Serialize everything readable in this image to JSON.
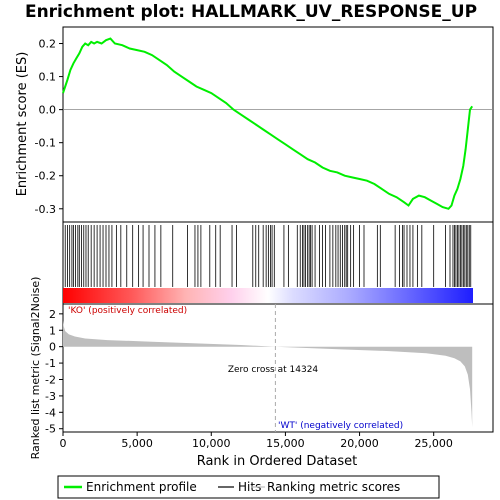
{
  "chart_data": {
    "type": "line",
    "title": "Enrichment plot: HALLMARK_UV_RESPONSE_UP",
    "xlabel": "Rank in Ordered Dataset",
    "x_ticks": [
      "0",
      "5,000",
      "10,000",
      "15,000",
      "20,000",
      "25,000"
    ],
    "xlim": [
      0,
      29000
    ],
    "es_panel": {
      "ylabel": "Enrichment score (ES)",
      "ylim": [
        -0.34,
        0.25
      ],
      "y_ticks": [
        "-0.3",
        "-0.2",
        "-0.1",
        "0.0",
        "0.1",
        "0.2"
      ],
      "x": [
        0,
        150,
        300,
        500,
        700,
        900,
        1100,
        1300,
        1500,
        1700,
        1900,
        2100,
        2300,
        2600,
        2900,
        3200,
        3500,
        4000,
        4500,
        5000,
        5500,
        6000,
        6500,
        7000,
        7500,
        8000,
        8500,
        9000,
        9500,
        10000,
        10500,
        11000,
        11500,
        12000,
        12500,
        13000,
        13500,
        14000,
        14500,
        15000,
        15500,
        16000,
        16500,
        17000,
        17500,
        18000,
        18500,
        19000,
        19500,
        20000,
        20500,
        21000,
        21500,
        22000,
        22500,
        23000,
        23300,
        23600,
        24000,
        24400,
        24800,
        25200,
        25600,
        26000,
        26200,
        26400,
        26600,
        26800,
        27000,
        27150,
        27300,
        27450,
        27600
      ],
      "y": [
        0.05,
        0.07,
        0.09,
        0.12,
        0.14,
        0.155,
        0.17,
        0.19,
        0.2,
        0.195,
        0.205,
        0.2,
        0.205,
        0.2,
        0.21,
        0.215,
        0.2,
        0.195,
        0.185,
        0.18,
        0.175,
        0.165,
        0.15,
        0.135,
        0.115,
        0.1,
        0.085,
        0.07,
        0.06,
        0.05,
        0.035,
        0.02,
        0.0,
        -0.015,
        -0.03,
        -0.045,
        -0.06,
        -0.075,
        -0.09,
        -0.105,
        -0.12,
        -0.135,
        -0.15,
        -0.16,
        -0.175,
        -0.185,
        -0.19,
        -0.2,
        -0.205,
        -0.21,
        -0.215,
        -0.225,
        -0.24,
        -0.255,
        -0.265,
        -0.28,
        -0.29,
        -0.27,
        -0.26,
        -0.265,
        -0.275,
        -0.285,
        -0.295,
        -0.3,
        -0.29,
        -0.26,
        -0.24,
        -0.21,
        -0.17,
        -0.12,
        -0.06,
        0.0,
        0.01
      ],
      "series_name": "Enrichment profile",
      "series_color": "#00ee00"
    },
    "hits": [
      150,
      300,
      450,
      600,
      700,
      850,
      1000,
      1100,
      1250,
      1400,
      1550,
      1700,
      1900,
      2100,
      2300,
      2500,
      2700,
      2900,
      3100,
      3300,
      3600,
      3900,
      4300,
      4700,
      5100,
      5400,
      5800,
      6200,
      6600,
      7400,
      8400,
      8900,
      9100,
      9300,
      9900,
      10300,
      10600,
      11400,
      11700,
      12800,
      13000,
      13200,
      13500,
      13700,
      13850,
      14000,
      14100,
      14250,
      14900,
      15200,
      15800,
      16000,
      16150,
      16250,
      16350,
      16500,
      16600,
      16700,
      16800,
      17000,
      17300,
      17500,
      17700,
      18000,
      18200,
      18400,
      18550,
      18700,
      18850,
      19000,
      19100,
      19200,
      19400,
      19600,
      20000,
      20300,
      21200,
      21400,
      22400,
      22700,
      22900,
      23000,
      23200,
      23400,
      23600,
      23900,
      24200,
      25000,
      25800,
      26100,
      26300,
      26400,
      26500,
      26600,
      26700,
      26800,
      26900,
      27000,
      27100,
      27200,
      27300,
      27400,
      27500
    ],
    "hit_color": "#000000",
    "metric_panel": {
      "ylabel": "Ranked list metric (Signal2Noise)",
      "ylim": [
        -5.2,
        2.6
      ],
      "y_ticks": [
        "-5",
        "-4",
        "-3",
        "-2",
        "-1",
        "0",
        "1",
        "2"
      ],
      "x": [
        0,
        50,
        150,
        400,
        800,
        1500,
        3000,
        6000,
        9000,
        12000,
        14324,
        16000,
        19000,
        22000,
        24500,
        25800,
        26400,
        26800,
        27100,
        27300,
        27450,
        27550,
        27600
      ],
      "y": [
        1.6,
        1.25,
        0.95,
        0.75,
        0.62,
        0.5,
        0.4,
        0.3,
        0.2,
        0.1,
        0.0,
        -0.07,
        -0.17,
        -0.27,
        -0.4,
        -0.55,
        -0.7,
        -0.9,
        -1.2,
        -1.7,
        -2.6,
        -4.0,
        -4.9
      ],
      "series_name": "Ranking metric scores",
      "fill_color": "#bebebe"
    },
    "zero_cross_label": "Zero cross at 14324",
    "zero_cross": 14324,
    "pos_label": "'KO' (positively correlated)",
    "neg_label": "'WT' (negatively correlated)",
    "pos_label_color": "#cc0000",
    "neg_label_color": "#0000cc",
    "legend": {
      "placement": "bottom",
      "items": [
        {
          "label": "Enrichment profile",
          "color": "#00ee00"
        },
        {
          "label": "Hits",
          "color": "#000000"
        },
        {
          "label": "Ranking metric scores",
          "color": "#bebebe"
        }
      ]
    }
  }
}
